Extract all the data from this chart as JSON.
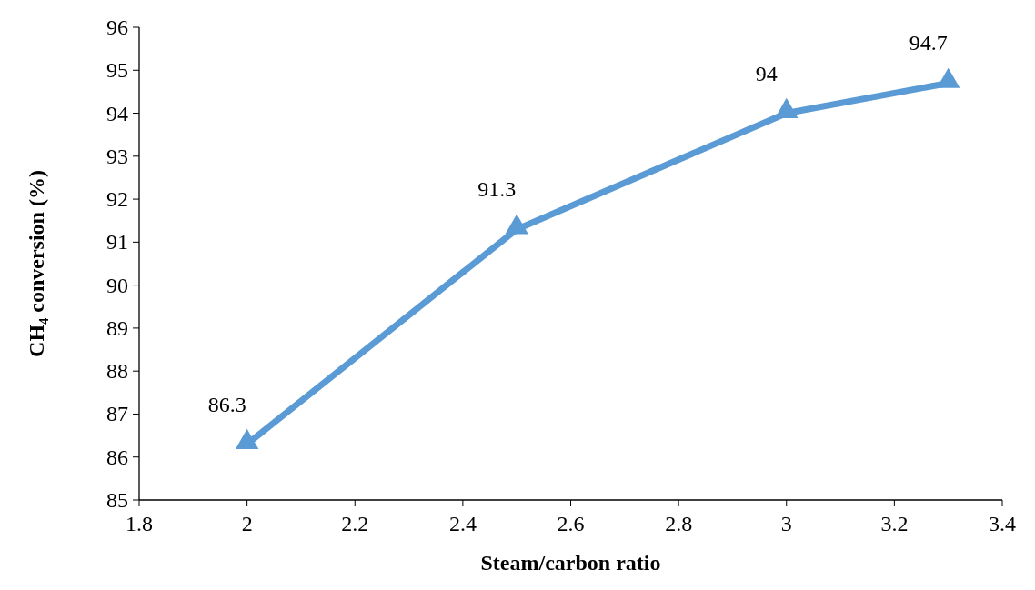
{
  "chart_data": {
    "type": "line",
    "xlabel": "Steam/carbon ratio",
    "ylabel": "CH₄ conversion (%)",
    "x": [
      2,
      2.5,
      3,
      3.3
    ],
    "series": [
      {
        "color": "#5b9bd5",
        "values": [
          86.3,
          91.3,
          94,
          94.7
        ]
      }
    ],
    "xlim": [
      1.8,
      3.4
    ],
    "xticks": [
      {
        "value": 1.8,
        "label": "1.8"
      },
      2,
      {
        "value": 2.2,
        "label": "2.2"
      },
      {
        "value": 2.4,
        "label": "2.4"
      },
      {
        "value": 2.6,
        "label": "2.6"
      },
      {
        "value": 2.8,
        "label": "2.8"
      },
      3,
      {
        "value": 3.2,
        "label": "3.2"
      },
      {
        "value": 3.4,
        "label": "3.4"
      }
    ],
    "ylim": [
      85,
      96
    ],
    "yticks": [
      85,
      86,
      87,
      88,
      89,
      90,
      91,
      92,
      93,
      94,
      95,
      96
    ],
    "marker": "triangle",
    "line_style": "solid",
    "data_labels": true,
    "grid": false
  }
}
